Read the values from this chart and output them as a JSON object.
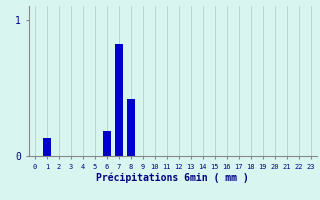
{
  "categories": [
    0,
    1,
    2,
    3,
    4,
    5,
    6,
    7,
    8,
    9,
    10,
    11,
    12,
    13,
    14,
    15,
    16,
    17,
    18,
    19,
    20,
    21,
    22,
    23
  ],
  "values": [
    0,
    0.13,
    0,
    0,
    0,
    0,
    0.18,
    0.82,
    0.42,
    0,
    0,
    0,
    0,
    0,
    0,
    0,
    0,
    0,
    0,
    0,
    0,
    0,
    0,
    0
  ],
  "background_color": "#d8f5f0",
  "bar_color": "#0000cc",
  "grid_color": "#b0c8c8",
  "xlabel": "Précipitations 6min ( mm )",
  "ylim": [
    0,
    1.1
  ],
  "xlim": [
    -0.5,
    23.5
  ],
  "yticks": [
    0,
    1
  ],
  "ytick_labels": [
    "0",
    "1"
  ]
}
